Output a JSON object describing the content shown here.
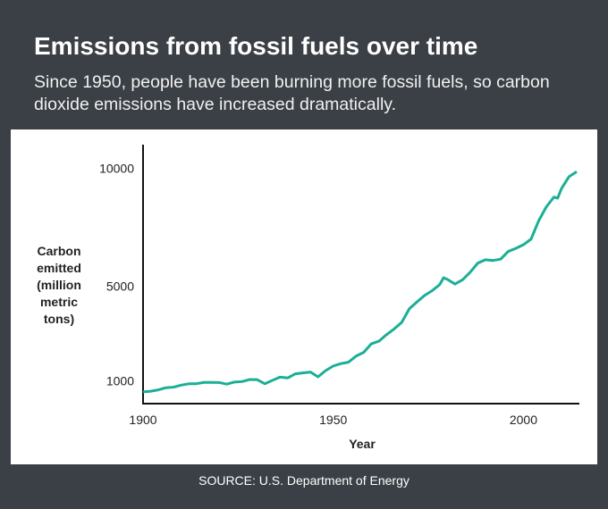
{
  "title": "Emissions from fossil fuels over time",
  "subtitle": "Since 1950, people have been burning more fossil fuels, so carbon dioxide emissions have increased dramatically.",
  "source": "SOURCE: U.S. Department of Energy",
  "chart_data": {
    "type": "line",
    "xlabel": "Year",
    "ylabel": "Carbon emitted (million metric tons)",
    "x": [
      1900,
      1902,
      1904,
      1906,
      1908,
      1910,
      1912,
      1914,
      1916,
      1918,
      1920,
      1922,
      1924,
      1926,
      1928,
      1930,
      1932,
      1934,
      1936,
      1938,
      1940,
      1942,
      1944,
      1946,
      1948,
      1950,
      1952,
      1954,
      1956,
      1958,
      1960,
      1962,
      1964,
      1966,
      1968,
      1970,
      1972,
      1974,
      1976,
      1978,
      1979,
      1980,
      1982,
      1984,
      1986,
      1988,
      1990,
      1992,
      1994,
      1996,
      1998,
      2000,
      2002,
      2004,
      2006,
      2008,
      2009,
      2010,
      2012,
      2014
    ],
    "series": [
      {
        "name": "Carbon emitted",
        "color": "#1aaf96",
        "values": [
          534,
          562,
          620,
          710,
          735,
          819,
          877,
          881,
          934,
          936,
          932,
          863,
          951,
          971,
          1057,
          1053,
          880,
          1023,
          1160,
          1124,
          1299,
          1339,
          1374,
          1171,
          1437,
          1630,
          1732,
          1792,
          2050,
          2207,
          2569,
          2681,
          2957,
          3198,
          3477,
          4053,
          4342,
          4616,
          4818,
          5079,
          5368,
          5297,
          5101,
          5281,
          5601,
          5986,
          6128,
          6097,
          6155,
          6481,
          6609,
          6765,
          7003,
          7778,
          8363,
          8779,
          8737,
          9140,
          9650,
          9855
        ]
      }
    ],
    "xlim": [
      1900,
      2014
    ],
    "xticks": [
      1900,
      1950,
      2000
    ],
    "ylim": [
      0,
      11000
    ],
    "yticks": [
      1000,
      5000,
      10000
    ],
    "grid": false
  }
}
